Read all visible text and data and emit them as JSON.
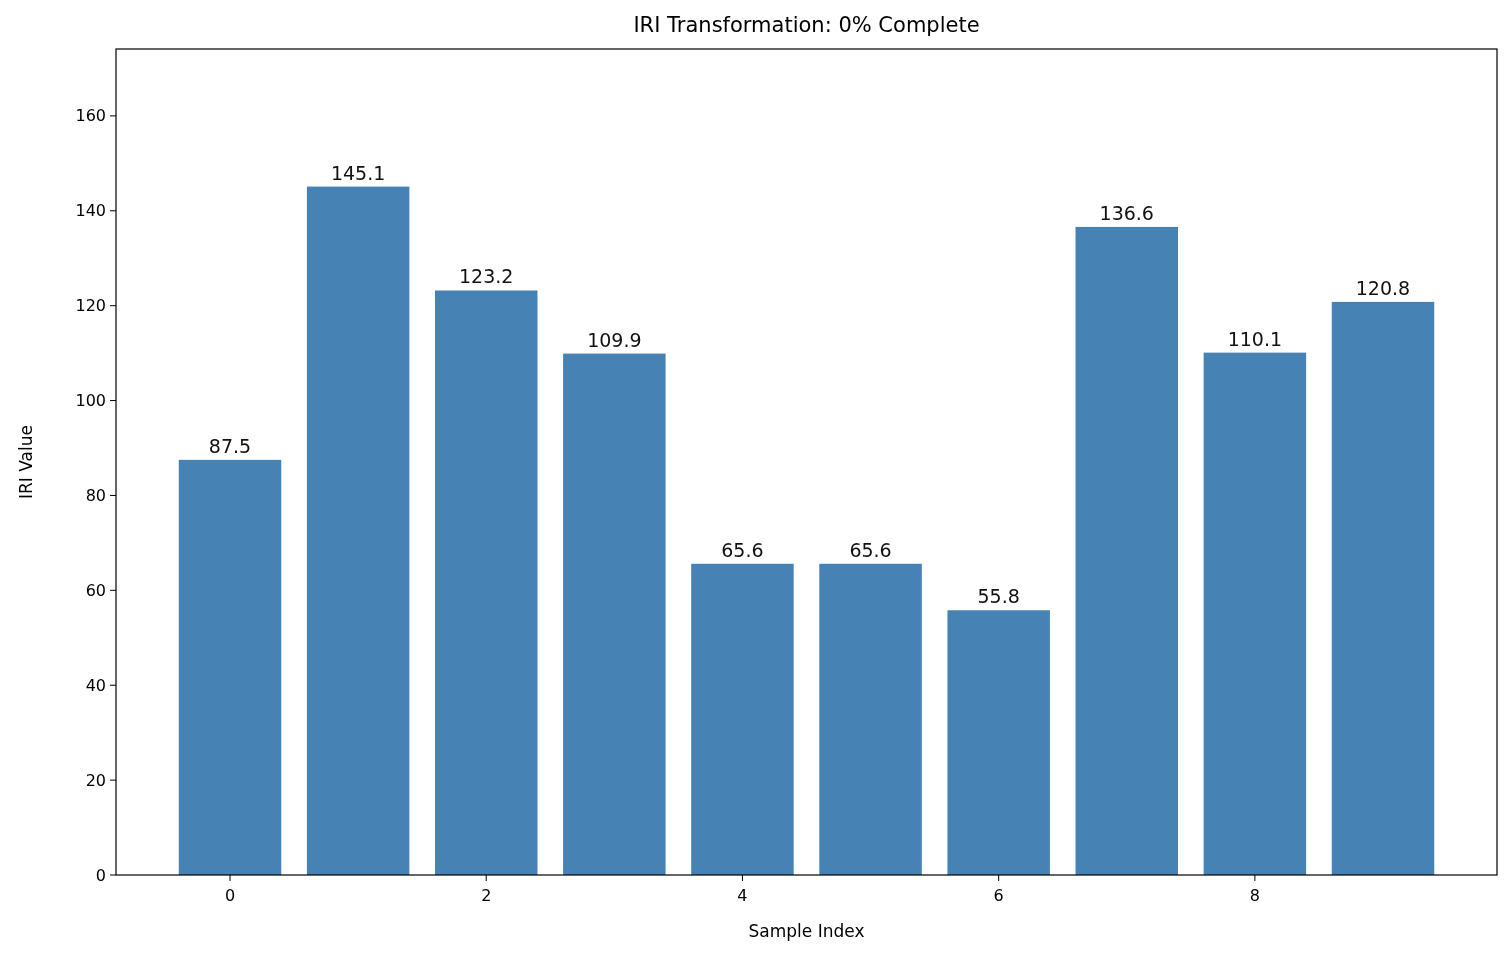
{
  "chart_data": {
    "type": "bar",
    "title": "IRI Transformation: 0% Complete",
    "xlabel": "Sample Index",
    "ylabel": "IRI Value",
    "x": [
      0,
      1,
      2,
      3,
      4,
      5,
      6,
      7,
      8,
      9
    ],
    "values": [
      87.5,
      145.1,
      123.2,
      109.9,
      65.6,
      65.6,
      55.8,
      136.6,
      110.1,
      120.8
    ],
    "color": "#4682b4",
    "xlim": [
      -0.89,
      9.89
    ],
    "xticks": [
      0,
      2,
      4,
      6,
      8
    ],
    "ylim": [
      0,
      174.1
    ],
    "yticks": [
      0,
      20,
      40,
      60,
      80,
      100,
      120,
      140,
      160
    ],
    "data_labels": true
  }
}
